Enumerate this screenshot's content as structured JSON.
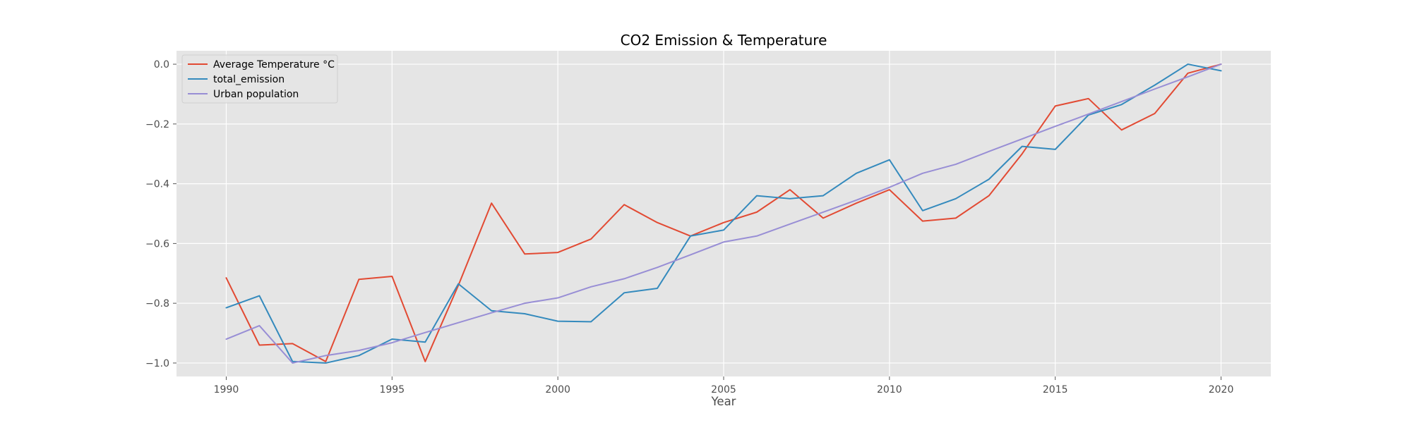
{
  "chart_data": {
    "type": "line",
    "title": "CO2 Emission & Temperature",
    "xlabel": "Year",
    "ylabel": "",
    "xlim": [
      1988.5,
      2021.5
    ],
    "ylim": [
      -1.045,
      0.045
    ],
    "xticks": [
      1990,
      1995,
      2000,
      2005,
      2010,
      2015,
      2020
    ],
    "yticks": [
      0.0,
      -0.2,
      -0.4,
      -0.6,
      -0.8,
      -1.0
    ],
    "ytick_labels": [
      "0.0",
      "−0.2",
      "−0.4",
      "−0.6",
      "−0.8",
      "−1.0"
    ],
    "grid": true,
    "legend_position": "top-left",
    "x": [
      1990,
      1991,
      1992,
      1993,
      1994,
      1995,
      1996,
      1997,
      1998,
      1999,
      2000,
      2001,
      2002,
      2003,
      2004,
      2005,
      2006,
      2007,
      2008,
      2009,
      2010,
      2011,
      2012,
      2013,
      2014,
      2015,
      2016,
      2017,
      2018,
      2019,
      2020
    ],
    "series": [
      {
        "name": "Average Temperature °C",
        "color": "#E24A33",
        "values": [
          -0.715,
          -0.94,
          -0.935,
          -0.995,
          -0.72,
          -0.71,
          -0.995,
          -0.74,
          -0.465,
          -0.635,
          -0.63,
          -0.585,
          -0.47,
          -0.53,
          -0.575,
          -0.53,
          -0.495,
          -0.42,
          -0.515,
          -0.465,
          -0.42,
          -0.525,
          -0.515,
          -0.44,
          -0.3,
          -0.14,
          -0.115,
          -0.22,
          -0.165,
          -0.03,
          0.0
        ]
      },
      {
        "name": "total_emission",
        "color": "#348ABD",
        "values": [
          -0.815,
          -0.775,
          -0.995,
          -1.0,
          -0.975,
          -0.92,
          -0.93,
          -0.735,
          -0.825,
          -0.835,
          -0.86,
          -0.862,
          -0.765,
          -0.75,
          -0.575,
          -0.555,
          -0.44,
          -0.45,
          -0.44,
          -0.365,
          -0.32,
          -0.49,
          -0.45,
          -0.385,
          -0.275,
          -0.285,
          -0.17,
          -0.135,
          -0.07,
          0.0,
          -0.022
        ]
      },
      {
        "name": "Urban population",
        "color": "#988ED5",
        "values": [
          -0.92,
          -0.875,
          -1.0,
          -0.975,
          -0.958,
          -0.932,
          -0.898,
          -0.865,
          -0.832,
          -0.8,
          -0.782,
          -0.745,
          -0.718,
          -0.68,
          -0.638,
          -0.595,
          -0.575,
          -0.535,
          -0.495,
          -0.455,
          -0.412,
          -0.365,
          -0.335,
          -0.292,
          -0.25,
          -0.208,
          -0.167,
          -0.125,
          -0.083,
          -0.042,
          0.0
        ]
      }
    ]
  }
}
